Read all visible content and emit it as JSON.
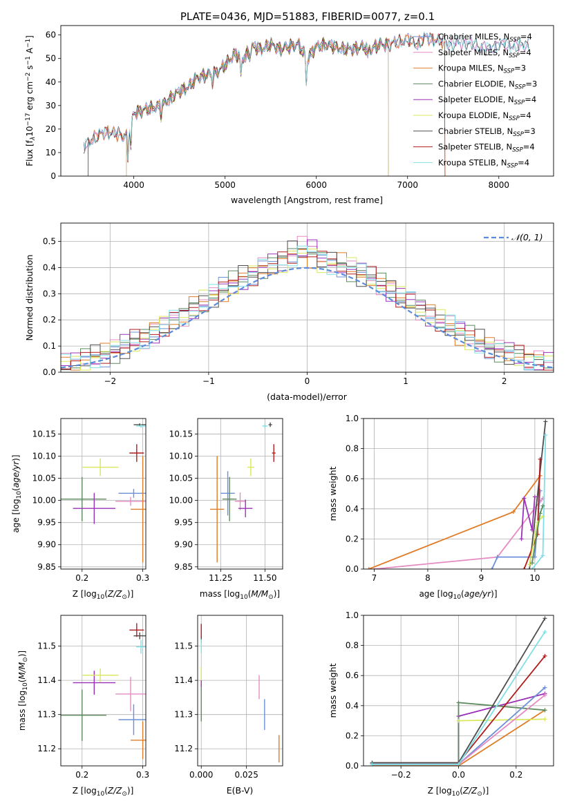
{
  "figure": {
    "title": "PLATE=0436, MJD=51883, FIBERID=0077, z=0.1"
  },
  "colors": {
    "Chabrier MILES": "#6b8fd8",
    "Salpeter MILES": "#e58bc4",
    "Kroupa MILES": "#e07b26",
    "Chabrier ELODIE": "#5c8a5c",
    "Salpeter ELODIE": "#9b30b8",
    "Kroupa ELODIE": "#d8e85a",
    "Chabrier STELIB": "#4d4d4d",
    "Salpeter STELIB": "#b01c1c",
    "Kroupa STELIB": "#7fdfe6",
    "normal": "#5b8bd9"
  },
  "chart_data": [
    {
      "type": "line",
      "id": "spectrum",
      "xlabel": "wavelength [Angstrom, rest frame]",
      "ylabel_parts": [
        "Flux [f",
        "λ",
        "10",
        "−17",
        " erg cm",
        "−2",
        " s",
        "−1",
        " A",
        "−1",
        "]"
      ],
      "xlim": [
        3200,
        8600
      ],
      "ylim": [
        0,
        64
      ],
      "xticks": [
        4000,
        5000,
        6000,
        7000,
        8000
      ],
      "yticks": [
        0,
        10,
        20,
        30,
        40,
        50,
        60
      ],
      "legend": [
        {
          "model": "Chabrier MILES",
          "text": "Chabrier MILES, N",
          "n": "4"
        },
        {
          "model": "Salpeter MILES",
          "text": "Salpeter MILES, N",
          "n": "4"
        },
        {
          "model": "Kroupa MILES",
          "text": "Kroupa MILES, N",
          "n": "3"
        },
        {
          "model": "Chabrier ELODIE",
          "text": "Chabrier ELODIE, N",
          "n": "3"
        },
        {
          "model": "Salpeter ELODIE",
          "text": "Salpeter ELODIE, N",
          "n": "4"
        },
        {
          "model": "Kroupa ELODIE",
          "text": "Kroupa ELODIE, N",
          "n": "4"
        },
        {
          "model": "Chabrier STELIB",
          "text": "Chabrier STELIB, N",
          "n": "3"
        },
        {
          "model": "Salpeter STELIB",
          "text": "Salpeter STELIB, N",
          "n": "4"
        },
        {
          "model": "Kroupa STELIB",
          "text": "Kroupa STELIB, N",
          "n": "4"
        }
      ],
      "legend_sub": "SSP",
      "legend_location": "right",
      "continuum": [
        [
          3450,
          12
        ],
        [
          3550,
          16
        ],
        [
          3700,
          19
        ],
        [
          3800,
          18
        ],
        [
          3900,
          17
        ],
        [
          3950,
          19
        ],
        [
          4000,
          27
        ],
        [
          4100,
          28
        ],
        [
          4200,
          29
        ],
        [
          4300,
          30
        ],
        [
          4400,
          33
        ],
        [
          4500,
          36
        ],
        [
          4600,
          38
        ],
        [
          4700,
          42
        ],
        [
          4800,
          43
        ],
        [
          4900,
          44
        ],
        [
          5000,
          47
        ],
        [
          5100,
          52
        ],
        [
          5200,
          50
        ],
        [
          5300,
          55
        ],
        [
          5400,
          54
        ],
        [
          5500,
          56
        ],
        [
          5600,
          54
        ],
        [
          5700,
          55
        ],
        [
          5800,
          56
        ],
        [
          5900,
          50
        ],
        [
          6000,
          55
        ],
        [
          6100,
          56
        ],
        [
          6200,
          55
        ],
        [
          6300,
          54
        ],
        [
          6400,
          54
        ],
        [
          6500,
          55
        ],
        [
          6600,
          54
        ],
        [
          6700,
          56
        ],
        [
          6800,
          56
        ],
        [
          6900,
          57
        ],
        [
          7000,
          58
        ],
        [
          7100,
          56
        ],
        [
          7200,
          59
        ],
        [
          7300,
          58
        ],
        [
          7400,
          57
        ],
        [
          7500,
          56
        ],
        [
          7600,
          57
        ],
        [
          7700,
          56
        ],
        [
          7800,
          55
        ],
        [
          7900,
          54
        ],
        [
          8000,
          56
        ],
        [
          8100,
          56
        ],
        [
          8200,
          55
        ],
        [
          8300,
          56
        ]
      ],
      "dips": [
        [
          3934,
          10
        ],
        [
          3968,
          9
        ],
        [
          4300,
          4
        ],
        [
          4861,
          4
        ],
        [
          5175,
          9
        ],
        [
          5270,
          3
        ],
        [
          5890,
          12
        ],
        [
          6563,
          4
        ]
      ],
      "spectrum_end": 8330,
      "cutoffs": [
        {
          "model": "Kroupa MILES",
          "start": 3500,
          "end": 7410
        },
        {
          "model": "Salpeter STELIB",
          "start": 3500,
          "end": 7410
        },
        {
          "model": "Chabrier ELODIE",
          "start": 3920,
          "end": 6790
        },
        {
          "model": "Kroupa ELODIE",
          "start": 3920,
          "end": 6790
        },
        {
          "model": "Salpeter ELODIE",
          "start": 3920,
          "end": 6790
        }
      ]
    },
    {
      "type": "line",
      "id": "residuals",
      "xlabel": "(data-model)/error",
      "ylabel": "Normed distribution",
      "xlim": [
        -2.5,
        2.5
      ],
      "ylim": [
        0,
        0.57
      ],
      "xticks": [
        -2,
        -1,
        0,
        1,
        2
      ],
      "xtick_labels": [
        "−2",
        "−1",
        "0",
        "1",
        "2"
      ],
      "yticks": [
        0.0,
        0.1,
        0.2,
        0.3,
        0.4,
        0.5
      ],
      "ytick_labels": [
        "0.0",
        "0.1",
        "0.2",
        "0.3",
        "0.4",
        "0.5"
      ],
      "grid": true,
      "bin_width": 0.1,
      "legend": [
        "𝒩(0, 1)"
      ],
      "legend_location": "top-right",
      "order": [
        "Chabrier MILES",
        "Salpeter MILES",
        "Kroupa MILES",
        "Chabrier ELODIE",
        "Salpeter ELODIE",
        "Kroupa ELODIE",
        "Chabrier STELIB",
        "Salpeter STELIB",
        "Kroupa STELIB"
      ]
    },
    {
      "type": "scatter",
      "id": "age-Z",
      "xlabel": "Z [log",
      "xlabel_parts": [
        "Z [log",
        "10",
        "(",
        "Z/Z",
        "⊙",
        ")]"
      ],
      "ylabel_parts": [
        "age  [log",
        "10",
        "(",
        "age/yr",
        ")]"
      ],
      "xlim": [
        0.165,
        0.305
      ],
      "ylim": [
        9.845,
        10.185
      ],
      "xticks": [
        0.2,
        0.3
      ],
      "yticks": [
        9.85,
        9.9,
        9.95,
        10.0,
        10.05,
        10.1,
        10.15
      ],
      "grid": true,
      "points": [
        {
          "model": "Chabrier MILES",
          "x": 0.285,
          "y": 10.016,
          "xerr": 0.025,
          "yerr": 0.01
        },
        {
          "model": "Salpeter MILES",
          "x": 0.28,
          "y": 9.998,
          "xerr": 0.025,
          "yerr": 0.01
        },
        {
          "model": "Kroupa MILES",
          "x": 0.3,
          "y": 9.98,
          "xerr": 0.02,
          "yerr": 0.12
        },
        {
          "model": "Chabrier ELODIE",
          "x": 0.2,
          "y": 10.003,
          "xerr": 0.04,
          "yerr": 0.05
        },
        {
          "model": "Salpeter ELODIE",
          "x": 0.22,
          "y": 9.982,
          "xerr": 0.035,
          "yerr": 0.035
        },
        {
          "model": "Kroupa ELODIE",
          "x": 0.23,
          "y": 10.075,
          "xerr": 0.03,
          "yerr": 0.02
        },
        {
          "model": "Chabrier STELIB",
          "x": 0.295,
          "y": 10.171,
          "xerr": 0.01,
          "yerr": 0.003
        },
        {
          "model": "Salpeter STELIB",
          "x": 0.29,
          "y": 10.107,
          "xerr": 0.012,
          "yerr": 0.02
        },
        {
          "model": "Kroupa STELIB",
          "x": 0.297,
          "y": 10.168,
          "xerr": 0.008,
          "yerr": 0.004
        }
      ]
    },
    {
      "type": "scatter",
      "id": "age-mass",
      "xlabel_parts": [
        "mass [log",
        "10",
        "(",
        "M/M",
        "⊙",
        ")]"
      ],
      "xlim": [
        11.12,
        11.6
      ],
      "ylim": [
        9.845,
        10.185
      ],
      "xticks": [
        11.25,
        11.5
      ],
      "xtick_labels": [
        "11.25",
        "11.50"
      ],
      "yticks": [
        9.85,
        9.9,
        9.95,
        10.0,
        10.05,
        10.1,
        10.15
      ],
      "grid": true,
      "points": [
        {
          "model": "Chabrier MILES",
          "x": 11.29,
          "y": 10.016,
          "xerr": 0.04,
          "yerr": 0.05
        },
        {
          "model": "Salpeter MILES",
          "x": 11.36,
          "y": 9.998,
          "xerr": 0.03,
          "yerr": 0.02
        },
        {
          "model": "Kroupa MILES",
          "x": 11.23,
          "y": 9.98,
          "xerr": 0.04,
          "yerr": 0.12
        },
        {
          "model": "Chabrier ELODIE",
          "x": 11.3,
          "y": 10.003,
          "xerr": 0.04,
          "yerr": 0.05
        },
        {
          "model": "Salpeter ELODIE",
          "x": 11.39,
          "y": 9.982,
          "xerr": 0.04,
          "yerr": 0.02
        },
        {
          "model": "Kroupa ELODIE",
          "x": 11.42,
          "y": 10.075,
          "xerr": 0.02,
          "yerr": 0.02
        },
        {
          "model": "Chabrier STELIB",
          "x": 11.53,
          "y": 10.171,
          "xerr": 0.01,
          "yerr": 0.005
        },
        {
          "model": "Salpeter STELIB",
          "x": 11.55,
          "y": 10.107,
          "xerr": 0.01,
          "yerr": 0.02
        },
        {
          "model": "Kroupa STELIB",
          "x": 11.5,
          "y": 10.168,
          "xerr": 0.015,
          "yerr": 0.005
        }
      ]
    },
    {
      "type": "line",
      "id": "weight-age",
      "xlabel_parts": [
        "age  [log",
        "10",
        "(",
        "age/yr",
        ")]"
      ],
      "ylabel": "mass weight",
      "xlim": [
        6.8,
        10.35
      ],
      "ylim": [
        0,
        1.0
      ],
      "xticks": [
        7,
        8,
        9,
        10
      ],
      "yticks": [
        0.0,
        0.2,
        0.4,
        0.6,
        0.8,
        1.0
      ],
      "ytick_labels": [
        "0.0",
        "0.2",
        "0.4",
        "0.6",
        "0.8",
        "1.0"
      ],
      "grid": true,
      "series": [
        {
          "model": "Kroupa MILES",
          "x": [
            6.9,
            9.6,
            10.1
          ],
          "y": [
            0.0,
            0.38,
            0.62
          ]
        },
        {
          "model": "Salpeter MILES",
          "x": [
            7.0,
            9.3,
            10.1,
            10.15
          ],
          "y": [
            0.0,
            0.08,
            0.45,
            0.47
          ]
        },
        {
          "model": "Chabrier MILES",
          "x": [
            9.2,
            9.3,
            10.0,
            10.1
          ],
          "y": [
            0.0,
            0.08,
            0.08,
            0.52
          ]
        },
        {
          "model": "Chabrier STELIB",
          "x": [
            9.9,
            10.2
          ],
          "y": [
            0.0,
            0.98
          ]
        },
        {
          "model": "Kroupa STELIB",
          "x": [
            9.95,
            10.15,
            10.2
          ],
          "y": [
            0.0,
            0.09,
            0.89
          ]
        },
        {
          "model": "Salpeter ELODIE",
          "x": [
            9.75,
            9.8,
            9.95,
            10.0
          ],
          "y": [
            0.2,
            0.47,
            0.26,
            0.48
          ]
        },
        {
          "model": "Salpeter STELIB",
          "x": [
            9.8,
            10.05,
            10.1
          ],
          "y": [
            0.0,
            0.23,
            0.73
          ]
        },
        {
          "model": "Kroupa ELODIE",
          "x": [
            9.9,
            10.05,
            10.15
          ],
          "y": [
            0.03,
            0.31,
            0.35
          ]
        },
        {
          "model": "Chabrier ELODIE",
          "x": [
            9.95,
            10.1,
            10.15
          ],
          "y": [
            0.04,
            0.37,
            0.42
          ]
        }
      ]
    },
    {
      "type": "scatter",
      "id": "mass-Z",
      "xlabel_parts": [
        "Z [log",
        "10",
        "(",
        "Z/Z",
        "⊙",
        ")]"
      ],
      "ylabel_parts": [
        "mass [log",
        "10",
        "(",
        "M/M",
        "⊙",
        ")]"
      ],
      "xlim": [
        0.165,
        0.305
      ],
      "ylim": [
        11.15,
        11.59
      ],
      "xticks": [
        0.2,
        0.3
      ],
      "yticks": [
        11.2,
        11.3,
        11.4,
        11.5
      ],
      "grid": true,
      "points": [
        {
          "model": "Chabrier MILES",
          "x": 0.285,
          "y": 11.285,
          "xerr": 0.025,
          "yerr": 0.045
        },
        {
          "model": "Salpeter MILES",
          "x": 0.28,
          "y": 11.36,
          "xerr": 0.025,
          "yerr": 0.05
        },
        {
          "model": "Kroupa MILES",
          "x": 0.3,
          "y": 11.225,
          "xerr": 0.02,
          "yerr": 0.055
        },
        {
          "model": "Chabrier ELODIE",
          "x": 0.2,
          "y": 11.298,
          "xerr": 0.04,
          "yerr": 0.075
        },
        {
          "model": "Salpeter ELODIE",
          "x": 0.22,
          "y": 11.393,
          "xerr": 0.035,
          "yerr": 0.035
        },
        {
          "model": "Kroupa ELODIE",
          "x": 0.23,
          "y": 11.415,
          "xerr": 0.03,
          "yerr": 0.02
        },
        {
          "model": "Chabrier STELIB",
          "x": 0.295,
          "y": 11.53,
          "xerr": 0.01,
          "yerr": 0.01
        },
        {
          "model": "Salpeter STELIB",
          "x": 0.29,
          "y": 11.547,
          "xerr": 0.012,
          "yerr": 0.02
        },
        {
          "model": "Kroupa STELIB",
          "x": 0.297,
          "y": 11.498,
          "xerr": 0.008,
          "yerr": 0.02
        }
      ]
    },
    {
      "type": "scatter",
      "id": "mass-ebv",
      "xlabel": "E(B-V)",
      "xlim": [
        -0.002,
        0.045
      ],
      "ylim": [
        11.15,
        11.59
      ],
      "xticks": [
        0.0,
        0.025
      ],
      "xtick_labels": [
        "0.000",
        "0.025"
      ],
      "yticks": [
        11.2,
        11.3,
        11.4,
        11.5
      ],
      "grid": true,
      "points": [
        {
          "model": "Chabrier MILES",
          "x": 0.035,
          "y": 11.3,
          "xerr": 0,
          "yerr": 0.045
        },
        {
          "model": "Salpeter MILES",
          "x": 0.032,
          "y": 11.38,
          "xerr": 0,
          "yerr": 0.035
        },
        {
          "model": "Kroupa MILES",
          "x": 0.043,
          "y": 11.2,
          "xerr": 0,
          "yerr": 0.04
        },
        {
          "model": "Chabrier ELODIE",
          "x": 0.0,
          "y": 11.33,
          "xerr": 0,
          "yerr": 0.05
        },
        {
          "model": "Salpeter ELODIE",
          "x": 0.0,
          "y": 11.39,
          "xerr": 0,
          "yerr": 0.01
        },
        {
          "model": "Kroupa ELODIE",
          "x": 0.0,
          "y": 11.42,
          "xerr": 0,
          "yerr": 0.02
        },
        {
          "model": "Chabrier STELIB",
          "x": 0.0,
          "y": 11.52,
          "xerr": 0,
          "yerr": 0.01
        },
        {
          "model": "Salpeter STELIB",
          "x": 0.0,
          "y": 11.545,
          "xerr": 0,
          "yerr": 0.02
        },
        {
          "model": "Kroupa STELIB",
          "x": 0.0,
          "y": 11.5,
          "xerr": 0,
          "yerr": 0.02
        }
      ]
    },
    {
      "type": "line",
      "id": "weight-Z",
      "xlabel_parts": [
        "Z [log",
        "10",
        "(",
        "Z/Z",
        "⊙",
        ")]"
      ],
      "ylabel": "mass weight",
      "xlim": [
        -0.33,
        0.33
      ],
      "ylim": [
        0,
        1.0
      ],
      "xticks": [
        -0.2,
        0.0,
        0.2
      ],
      "xtick_labels": [
        "−0.2",
        "0.0",
        "0.2"
      ],
      "yticks": [
        0.0,
        0.2,
        0.4,
        0.6,
        0.8,
        1.0
      ],
      "ytick_labels": [
        "0.0",
        "0.2",
        "0.4",
        "0.6",
        "0.8",
        "1.0"
      ],
      "grid": true,
      "series": [
        {
          "model": "Salpeter ELODIE",
          "x": [
            -0.3,
            0.0,
            0.0,
            0.3
          ],
          "y": [
            0.02,
            0.02,
            0.33,
            0.48
          ]
        },
        {
          "model": "Kroupa MILES",
          "x": [
            -0.3,
            0.0,
            0.3
          ],
          "y": [
            0.0,
            0.0,
            0.37
          ]
        },
        {
          "model": "Chabrier ELODIE",
          "x": [
            -0.3,
            0.0,
            0.0,
            0.3
          ],
          "y": [
            0.02,
            0.02,
            0.42,
            0.37
          ]
        },
        {
          "model": "Kroupa ELODIE",
          "x": [
            0.0,
            0.3
          ],
          "y": [
            0.3,
            0.31
          ]
        },
        {
          "model": "Chabrier MILES",
          "x": [
            -0.3,
            0.0,
            0.3
          ],
          "y": [
            0.01,
            0.01,
            0.52
          ]
        },
        {
          "model": "Salpeter MILES",
          "x": [
            -0.3,
            0.0,
            0.3
          ],
          "y": [
            0.01,
            0.01,
            0.47
          ]
        },
        {
          "model": "Salpeter STELIB",
          "x": [
            -0.3,
            0.0,
            0.3
          ],
          "y": [
            0.02,
            0.02,
            0.73
          ]
        },
        {
          "model": "Chabrier STELIB",
          "x": [
            -0.3,
            0.0,
            0.3
          ],
          "y": [
            0.02,
            0.02,
            0.98
          ]
        },
        {
          "model": "Kroupa STELIB",
          "x": [
            -0.3,
            0.0,
            0.3
          ],
          "y": [
            0.01,
            0.01,
            0.89
          ]
        }
      ]
    }
  ]
}
